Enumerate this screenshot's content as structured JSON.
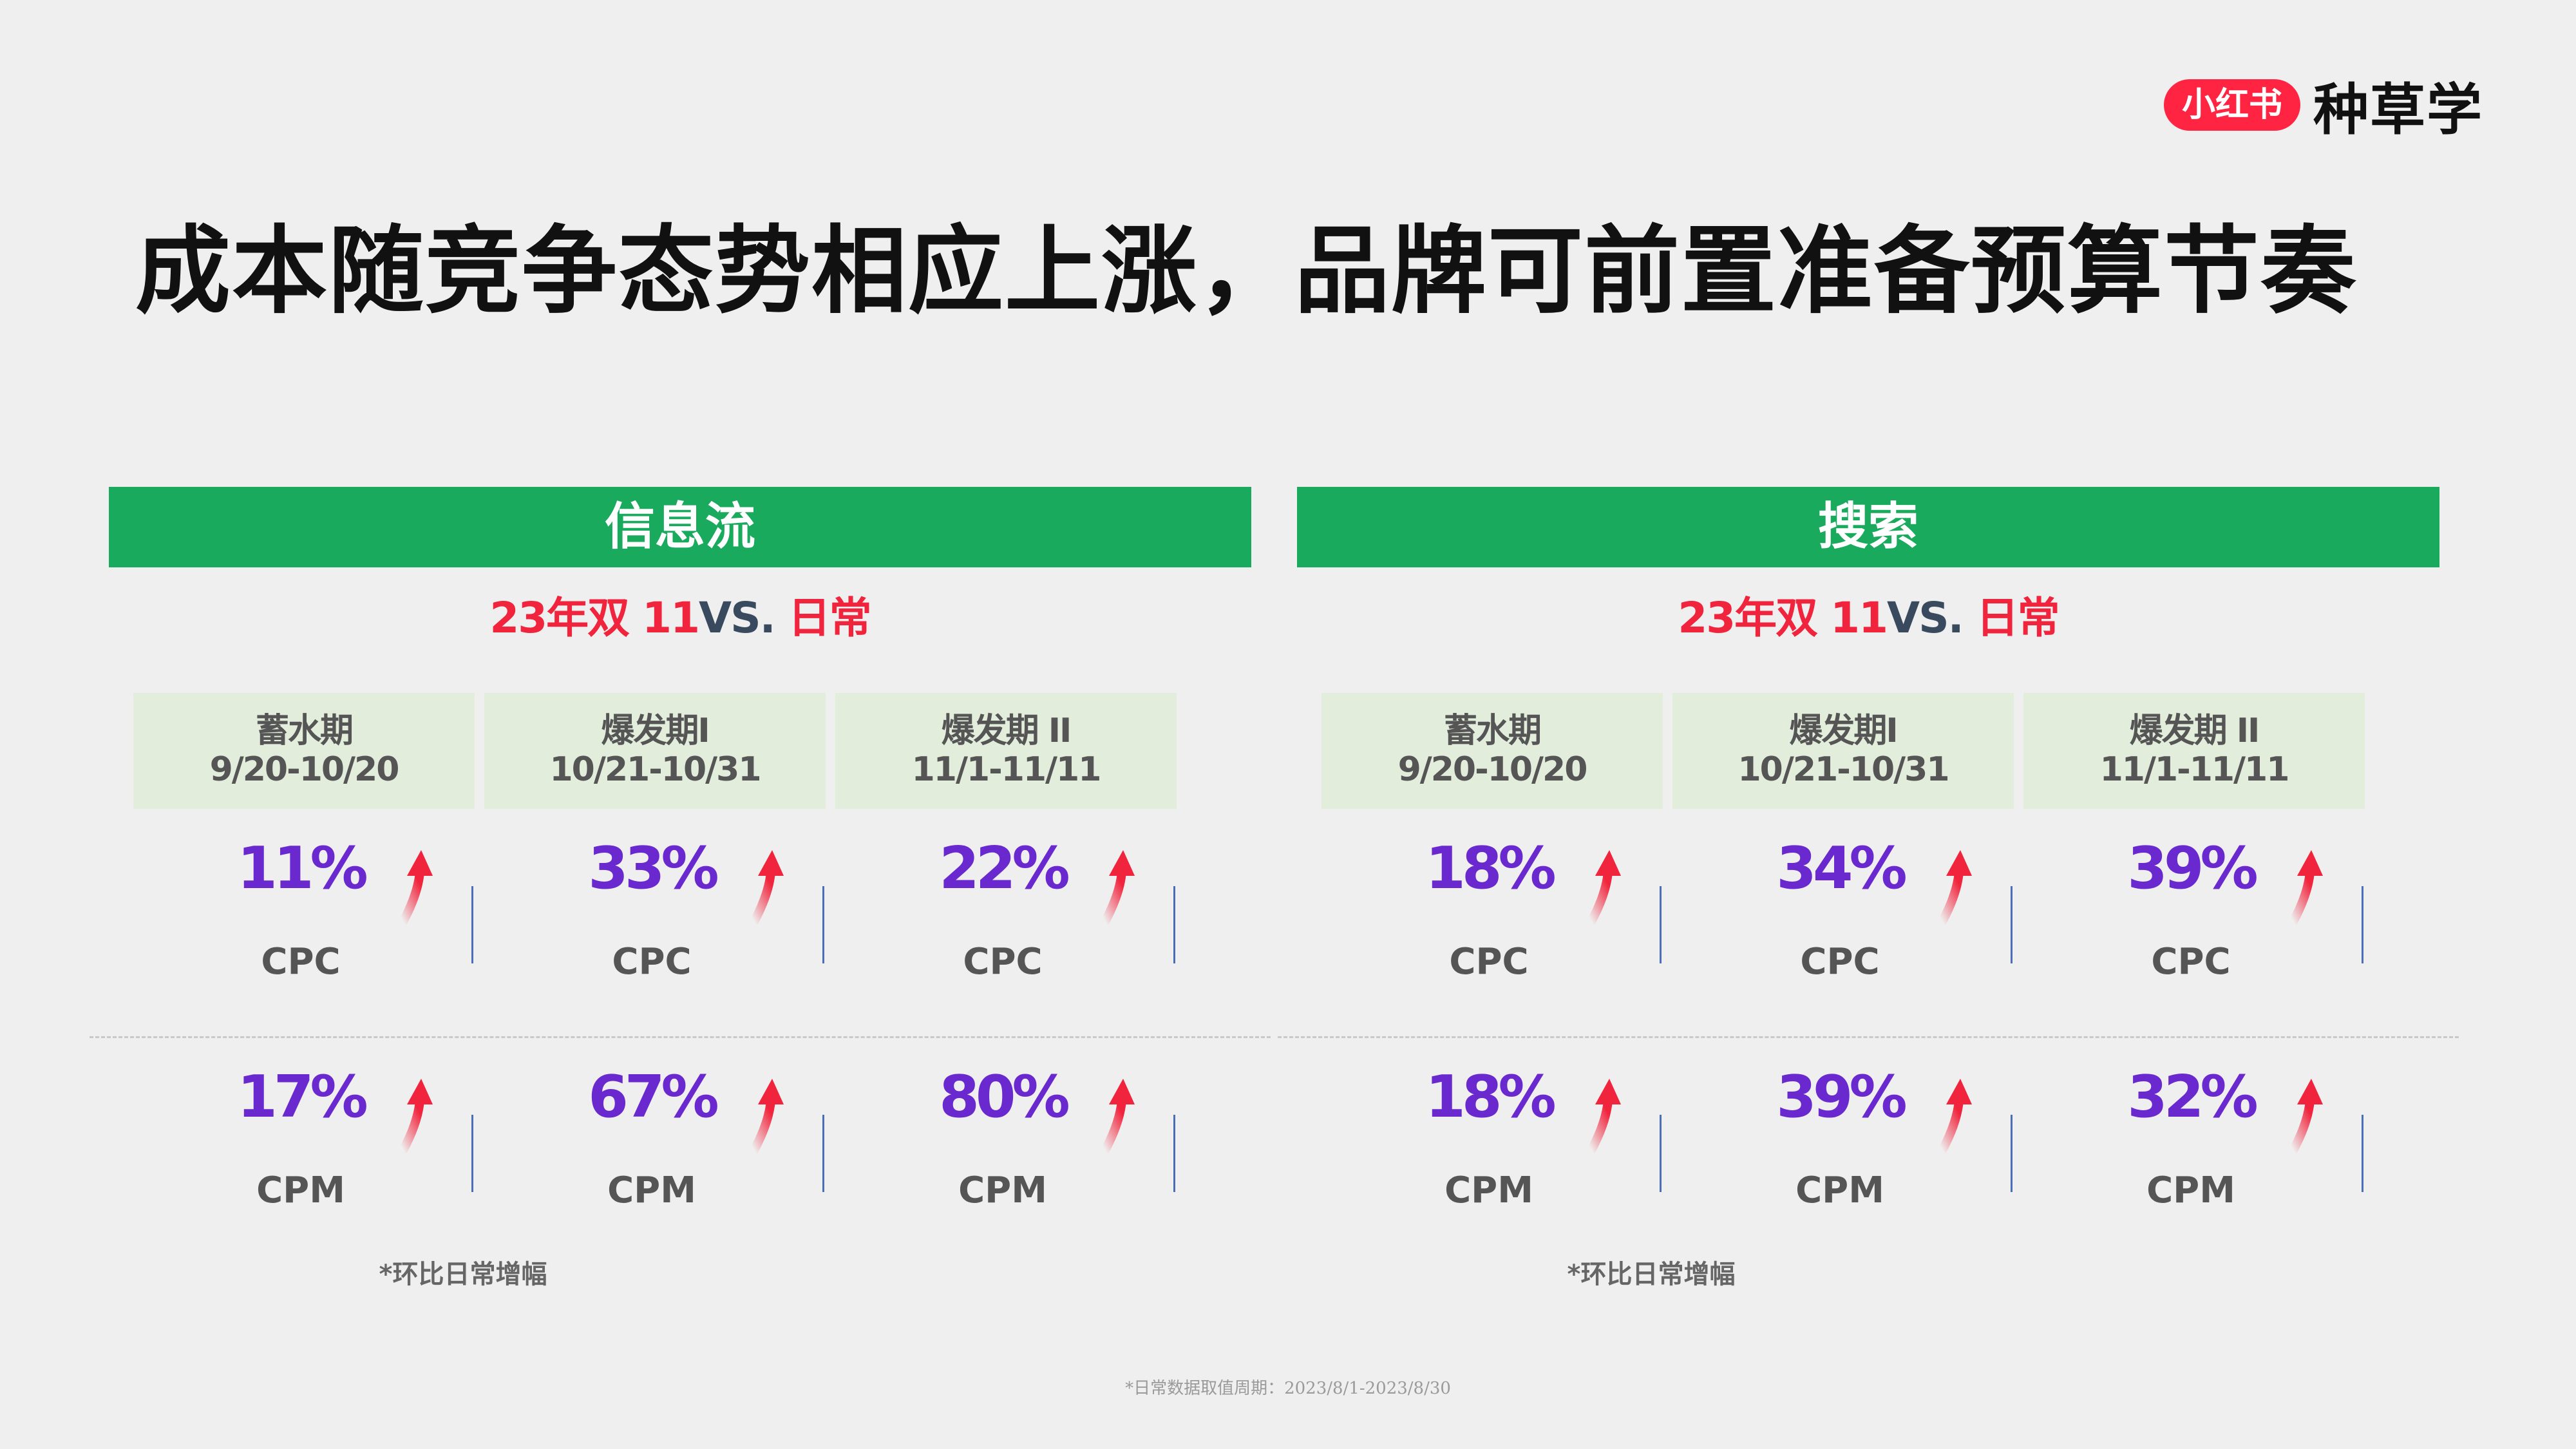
{
  "logo": {
    "badge": "小红书",
    "text": "种草学"
  },
  "title": "成本随竞争态势相应上涨，品牌可前置准备预算节奏",
  "colors": {
    "header_green": "#1aaa5e",
    "accent_red": "#f0243c",
    "value_purple": "#6a28cf",
    "period_bg": "#e3eddb"
  },
  "panels": [
    {
      "header": "信息流",
      "compare": {
        "lead": "23年双 11",
        "vs": "VS.",
        "tail": " 日常"
      },
      "periods": [
        {
          "name": "蓄水期",
          "range": "9/20-10/20"
        },
        {
          "name": "爆发期I",
          "range": "10/21-10/31"
        },
        {
          "name": "爆发期 II",
          "range": "11/1-11/11"
        }
      ],
      "cpc": [
        {
          "value": "11%",
          "label": "CPC"
        },
        {
          "value": "33%",
          "label": "CPC"
        },
        {
          "value": "22%",
          "label": "CPC"
        }
      ],
      "cpm": [
        {
          "value": "17%",
          "label": "CPM"
        },
        {
          "value": "67%",
          "label": "CPM"
        },
        {
          "value": "80%",
          "label": "CPM"
        }
      ],
      "note": "*环比日常增幅"
    },
    {
      "header": "搜索",
      "compare": {
        "lead": "23年双 11",
        "vs": "VS.",
        "tail": " 日常"
      },
      "periods": [
        {
          "name": "蓄水期",
          "range": "9/20-10/20"
        },
        {
          "name": "爆发期I",
          "range": "10/21-10/31"
        },
        {
          "name": "爆发期 II",
          "range": "11/1-11/11"
        }
      ],
      "cpc": [
        {
          "value": "18%",
          "label": "CPC"
        },
        {
          "value": "34%",
          "label": "CPC"
        },
        {
          "value": "39%",
          "label": "CPC"
        }
      ],
      "cpm": [
        {
          "value": "18%",
          "label": "CPM"
        },
        {
          "value": "39%",
          "label": "CPM"
        },
        {
          "value": "32%",
          "label": "CPM"
        }
      ],
      "note": "*环比日常增幅"
    }
  ],
  "footer": "*日常数据取值周期：2023/8/1-2023/8/30"
}
